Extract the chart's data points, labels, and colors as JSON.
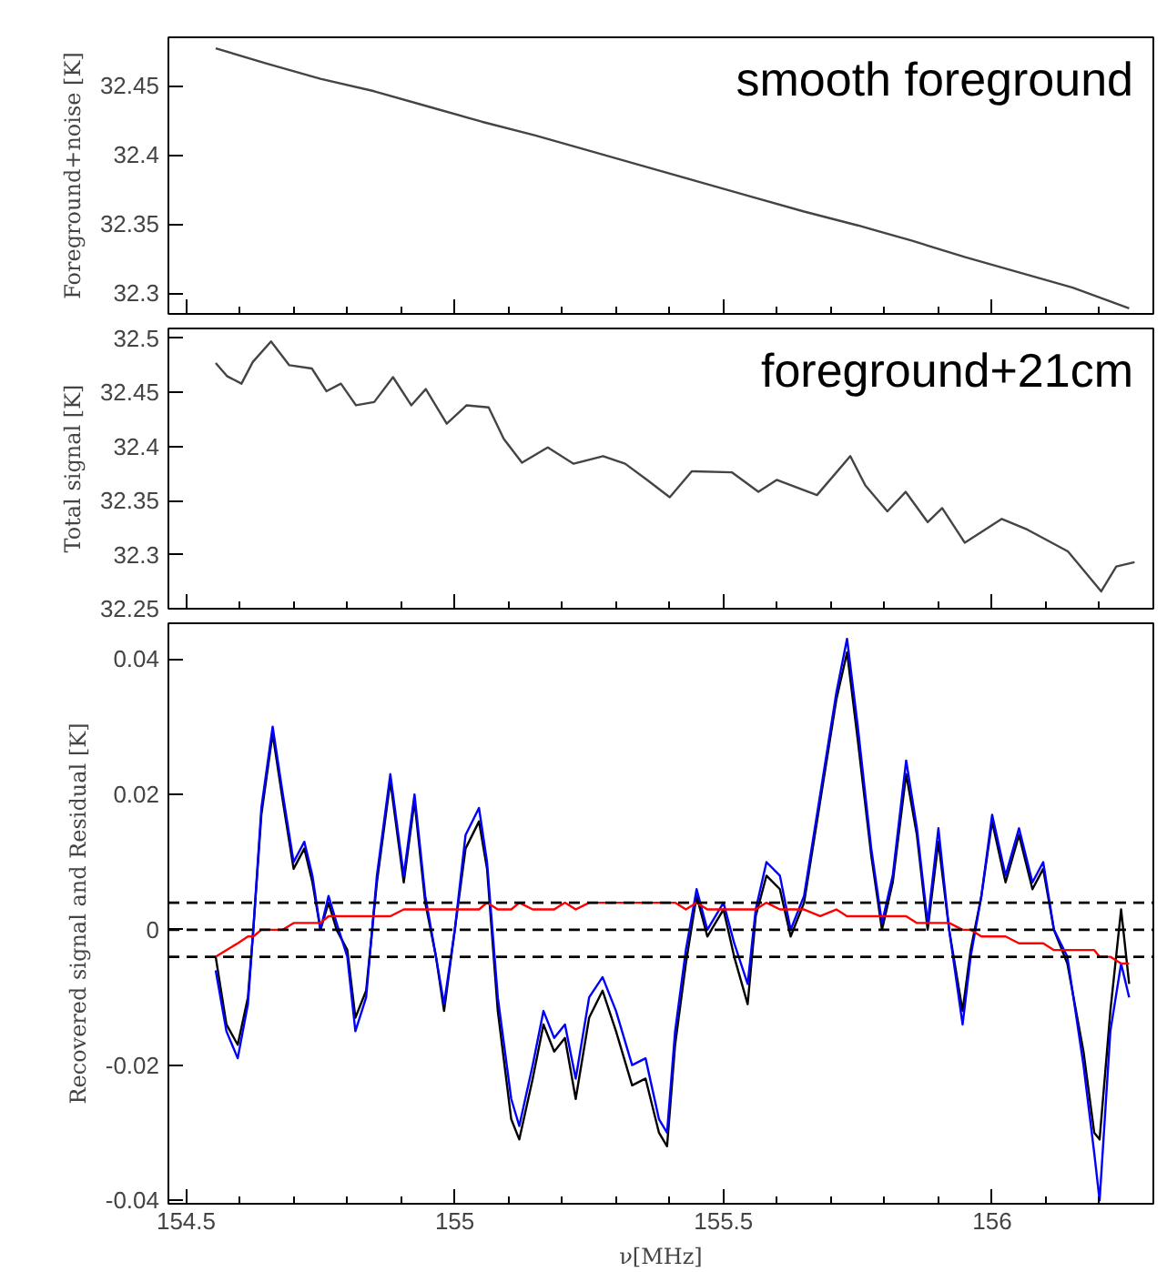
{
  "chart_data": [
    {
      "type": "line",
      "annotations": [
        "smooth foreground"
      ],
      "ylabel": "Foreground+noise [K]",
      "xlim": [
        154.467,
        156.3
      ],
      "ylim": [
        32.285,
        32.485
      ],
      "xticks": [
        154.5,
        {
          "value": 154.6,
          "label": null
        },
        {
          "value": 154.7,
          "label": null
        },
        {
          "value": 154.8,
          "label": null
        },
        {
          "value": 154.9,
          "label": null
        },
        155,
        {
          "value": 155.1,
          "label": null
        },
        {
          "value": 155.2,
          "label": null
        },
        {
          "value": 155.3,
          "label": null
        },
        {
          "value": 155.4,
          "label": null
        },
        155.5,
        {
          "value": 155.6,
          "label": null
        },
        {
          "value": 155.7,
          "label": null
        },
        {
          "value": 155.8,
          "label": null
        },
        {
          "value": 155.9,
          "label": null
        },
        156,
        {
          "value": 156.1,
          "label": null
        },
        {
          "value": 156.2,
          "label": null
        }
      ],
      "yticks": [
        32.3,
        32.35,
        32.4,
        32.45
      ],
      "tick_labels": "y",
      "grid": false,
      "line_style": "solid",
      "series": [
        {
          "color": "#444444",
          "x": [
            154.555,
            154.65,
            154.75,
            154.85,
            154.95,
            155.05,
            155.15,
            155.25,
            155.35,
            155.45,
            155.55,
            155.65,
            155.75,
            155.85,
            155.95,
            156.05,
            156.15,
            156.255
          ],
          "values": [
            32.477,
            32.466,
            32.455,
            32.446,
            32.435,
            32.424,
            32.414,
            32.403,
            32.392,
            32.381,
            32.37,
            32.359,
            32.349,
            32.338,
            32.326,
            32.315,
            32.304,
            32.289
          ]
        }
      ]
    },
    {
      "type": "line",
      "annotations": [
        "foreground+21cm"
      ],
      "ylabel": "Total signal [K]",
      "xlim": [
        154.467,
        156.3
      ],
      "ylim": [
        32.25,
        32.509
      ],
      "xticks": [
        154.5,
        {
          "value": 154.6,
          "label": null
        },
        {
          "value": 154.7,
          "label": null
        },
        {
          "value": 154.8,
          "label": null
        },
        {
          "value": 154.9,
          "label": null
        },
        155,
        {
          "value": 155.1,
          "label": null
        },
        {
          "value": 155.2,
          "label": null
        },
        {
          "value": 155.3,
          "label": null
        },
        {
          "value": 155.4,
          "label": null
        },
        155.5,
        {
          "value": 155.6,
          "label": null
        },
        {
          "value": 155.7,
          "label": null
        },
        {
          "value": 155.8,
          "label": null
        },
        {
          "value": 155.9,
          "label": null
        },
        156,
        {
          "value": 156.1,
          "label": null
        },
        {
          "value": 156.2,
          "label": null
        }
      ],
      "yticks": [
        32.25,
        32.3,
        32.35,
        32.4,
        32.45,
        32.5
      ],
      "tick_labels": "y",
      "grid": false,
      "line_style": "solid",
      "series": [
        {
          "color": "#444444",
          "x": [
            154.555,
            154.576,
            154.603,
            154.624,
            154.658,
            154.692,
            154.734,
            154.761,
            154.788,
            154.816,
            154.85,
            154.885,
            154.919,
            154.946,
            154.985,
            155.022,
            155.063,
            155.091,
            155.125,
            155.173,
            155.221,
            155.276,
            155.317,
            155.358,
            155.4,
            155.441,
            155.516,
            155.565,
            155.599,
            155.674,
            155.736,
            155.764,
            155.805,
            155.839,
            155.88,
            155.907,
            155.949,
            156.018,
            156.066,
            156.141,
            156.203,
            156.231,
            156.265
          ],
          "values": [
            32.477,
            32.465,
            32.458,
            32.478,
            32.497,
            32.475,
            32.472,
            32.451,
            32.458,
            32.438,
            32.441,
            32.464,
            32.438,
            32.453,
            32.421,
            32.438,
            32.436,
            32.407,
            32.385,
            32.399,
            32.384,
            32.391,
            32.384,
            32.369,
            32.353,
            32.377,
            32.376,
            32.358,
            32.369,
            32.355,
            32.391,
            32.364,
            32.34,
            32.358,
            32.33,
            32.343,
            32.311,
            32.333,
            32.323,
            32.303,
            32.266,
            32.289,
            32.293
          ]
        }
      ]
    },
    {
      "type": "line",
      "xlabel": "ν[MHz]",
      "ylabel": "Recovered signal and Residual [K]",
      "xlim": [
        154.467,
        156.3
      ],
      "ylim": [
        -0.0405,
        0.0453
      ],
      "xticks": [
        154.5,
        {
          "value": 154.6,
          "label": null
        },
        {
          "value": 154.7,
          "label": null
        },
        {
          "value": 154.8,
          "label": null
        },
        {
          "value": 154.9,
          "label": null
        },
        155,
        {
          "value": 155.1,
          "label": null
        },
        {
          "value": 155.2,
          "label": null
        },
        {
          "value": 155.3,
          "label": null
        },
        {
          "value": 155.4,
          "label": null
        },
        155.5,
        {
          "value": 155.6,
          "label": null
        },
        {
          "value": 155.7,
          "label": null
        },
        {
          "value": 155.8,
          "label": null
        },
        {
          "value": 155.9,
          "label": null
        },
        156,
        {
          "value": 156.1,
          "label": null
        },
        {
          "value": 156.2,
          "label": null
        }
      ],
      "yticks": [
        -0.04,
        -0.02,
        0,
        0.02,
        0.04
      ],
      "grid": false,
      "line_style": "solid",
      "ref_lines": [
        {
          "axis": "y",
          "value": 0.004,
          "color": "#000000",
          "line_style": "dashed"
        },
        {
          "axis": "y",
          "value": 0,
          "color": "#000000",
          "line_style": "dashed"
        },
        {
          "axis": "y",
          "value": -0.004,
          "color": "#000000",
          "line_style": "dashed"
        }
      ],
      "x": [
        154.555,
        154.575,
        154.596,
        154.615,
        154.625,
        154.64,
        154.661,
        154.68,
        154.7,
        154.72,
        154.735,
        154.75,
        154.765,
        154.78,
        154.8,
        154.815,
        154.835,
        154.855,
        154.88,
        154.905,
        154.925,
        154.945,
        154.965,
        154.98,
        155.0,
        155.02,
        155.045,
        155.06,
        155.08,
        155.105,
        155.12,
        155.145,
        155.165,
        155.185,
        155.205,
        155.225,
        155.25,
        155.275,
        155.3,
        155.33,
        155.355,
        155.38,
        155.395,
        155.41,
        155.43,
        155.45,
        155.47,
        155.5,
        155.52,
        155.545,
        155.56,
        155.58,
        155.605,
        155.625,
        155.65,
        155.68,
        155.71,
        155.73,
        155.75,
        155.775,
        155.795,
        155.815,
        155.84,
        155.86,
        155.88,
        155.9,
        155.92,
        155.945,
        155.96,
        155.98,
        156.0,
        156.025,
        156.05,
        156.075,
        156.095,
        156.115,
        156.14,
        156.17,
        156.19,
        156.2,
        156.22,
        156.24,
        156.255
      ],
      "series": [
        {
          "color": "#000000",
          "values": [
            -0.004,
            -0.014,
            -0.017,
            -0.01,
            0.0,
            0.017,
            0.029,
            0.019,
            0.009,
            0.012,
            0.007,
            0.0,
            0.004,
            0.0,
            -0.003,
            -0.013,
            -0.009,
            0.007,
            0.022,
            0.007,
            0.019,
            0.004,
            -0.004,
            -0.012,
            0.0,
            0.012,
            0.016,
            0.009,
            -0.012,
            -0.028,
            -0.031,
            -0.022,
            -0.014,
            -0.018,
            -0.016,
            -0.025,
            -0.013,
            -0.009,
            -0.015,
            -0.023,
            -0.022,
            -0.03,
            -0.032,
            -0.017,
            -0.005,
            0.005,
            -0.001,
            0.003,
            -0.004,
            -0.011,
            0.002,
            0.008,
            0.006,
            -0.001,
            0.004,
            0.019,
            0.034,
            0.041,
            0.028,
            0.011,
            0.0,
            0.007,
            0.023,
            0.014,
            0.0,
            0.013,
            0.0,
            -0.012,
            -0.003,
            0.005,
            0.016,
            0.007,
            0.014,
            0.006,
            0.009,
            0.0,
            -0.005,
            -0.018,
            -0.03,
            -0.031,
            -0.012,
            0.003,
            -0.008
          ]
        },
        {
          "color": "#0000ff",
          "values": [
            -0.006,
            -0.015,
            -0.019,
            -0.011,
            0.0,
            0.018,
            0.03,
            0.02,
            0.01,
            0.013,
            0.008,
            0.0,
            0.005,
            0.001,
            -0.004,
            -0.015,
            -0.01,
            0.008,
            0.023,
            0.008,
            0.02,
            0.005,
            -0.004,
            -0.011,
            0.0,
            0.014,
            0.018,
            0.01,
            -0.01,
            -0.025,
            -0.029,
            -0.02,
            -0.012,
            -0.016,
            -0.014,
            -0.022,
            -0.01,
            -0.007,
            -0.012,
            -0.02,
            -0.019,
            -0.028,
            -0.03,
            -0.015,
            -0.003,
            0.006,
            0.0,
            0.004,
            -0.002,
            -0.008,
            0.003,
            0.01,
            0.008,
            0.0,
            0.005,
            0.02,
            0.035,
            0.043,
            0.03,
            0.012,
            0.001,
            0.008,
            0.025,
            0.015,
            0.001,
            0.015,
            0.0,
            -0.014,
            -0.004,
            0.005,
            0.017,
            0.008,
            0.015,
            0.007,
            0.01,
            0.0,
            -0.004,
            -0.02,
            -0.033,
            -0.04,
            -0.015,
            -0.005,
            -0.01
          ]
        },
        {
          "color": "#ff0000",
          "values": [
            -0.004,
            -0.003,
            -0.002,
            -0.001,
            -0.001,
            0.0,
            0.0,
            0.0,
            0.001,
            0.001,
            0.001,
            0.001,
            0.002,
            0.002,
            0.002,
            0.002,
            0.002,
            0.002,
            0.002,
            0.003,
            0.003,
            0.003,
            0.003,
            0.003,
            0.003,
            0.003,
            0.003,
            0.004,
            0.003,
            0.003,
            0.004,
            0.003,
            0.003,
            0.003,
            0.004,
            0.003,
            0.004,
            0.004,
            0.004,
            0.004,
            0.004,
            0.004,
            0.004,
            0.004,
            0.003,
            0.004,
            0.003,
            0.003,
            0.003,
            0.003,
            0.003,
            0.004,
            0.003,
            0.003,
            0.003,
            0.002,
            0.003,
            0.002,
            0.002,
            0.002,
            0.002,
            0.002,
            0.002,
            0.001,
            0.001,
            0.001,
            0.001,
            0.0,
            0.0,
            -0.001,
            -0.001,
            -0.001,
            -0.002,
            -0.002,
            -0.002,
            -0.003,
            -0.003,
            -0.003,
            -0.003,
            -0.004,
            -0.004,
            -0.005,
            -0.005
          ]
        }
      ]
    }
  ]
}
